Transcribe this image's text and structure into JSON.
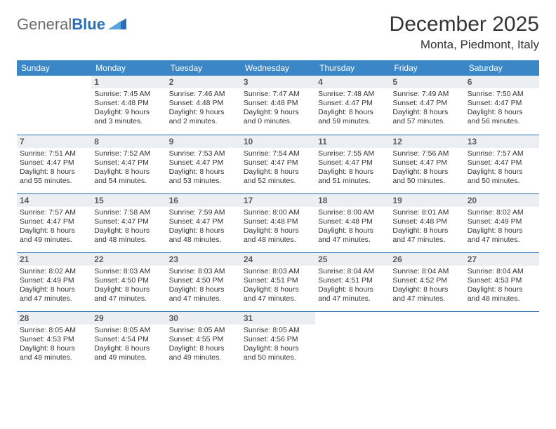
{
  "brand": {
    "part1": "General",
    "part2": "Blue"
  },
  "title": "December 2025",
  "location": "Monta, Piedmont, Italy",
  "colors": {
    "header_bg": "#3b86c7",
    "header_text": "#ffffff",
    "rule": "#2a6fb5",
    "daynum_bg": "#eceff1",
    "daynum_text": "#5a5a5a",
    "body_text": "#333333",
    "page_bg": "#ffffff"
  },
  "typography": {
    "title_fontsize": 30,
    "location_fontsize": 17,
    "weekday_fontsize": 12,
    "daynum_fontsize": 12,
    "cell_fontsize": 10.5
  },
  "weekdays": [
    "Sunday",
    "Monday",
    "Tuesday",
    "Wednesday",
    "Thursday",
    "Friday",
    "Saturday"
  ],
  "type": "table",
  "columns": 7,
  "rows_count": 5,
  "cells": [
    [
      null,
      {
        "day": "1",
        "sunrise": "7:45 AM",
        "sunset": "4:48 PM",
        "daylight": "9 hours and 3 minutes."
      },
      {
        "day": "2",
        "sunrise": "7:46 AM",
        "sunset": "4:48 PM",
        "daylight": "9 hours and 2 minutes."
      },
      {
        "day": "3",
        "sunrise": "7:47 AM",
        "sunset": "4:48 PM",
        "daylight": "9 hours and 0 minutes."
      },
      {
        "day": "4",
        "sunrise": "7:48 AM",
        "sunset": "4:47 PM",
        "daylight": "8 hours and 59 minutes."
      },
      {
        "day": "5",
        "sunrise": "7:49 AM",
        "sunset": "4:47 PM",
        "daylight": "8 hours and 57 minutes."
      },
      {
        "day": "6",
        "sunrise": "7:50 AM",
        "sunset": "4:47 PM",
        "daylight": "8 hours and 56 minutes."
      }
    ],
    [
      {
        "day": "7",
        "sunrise": "7:51 AM",
        "sunset": "4:47 PM",
        "daylight": "8 hours and 55 minutes."
      },
      {
        "day": "8",
        "sunrise": "7:52 AM",
        "sunset": "4:47 PM",
        "daylight": "8 hours and 54 minutes."
      },
      {
        "day": "9",
        "sunrise": "7:53 AM",
        "sunset": "4:47 PM",
        "daylight": "8 hours and 53 minutes."
      },
      {
        "day": "10",
        "sunrise": "7:54 AM",
        "sunset": "4:47 PM",
        "daylight": "8 hours and 52 minutes."
      },
      {
        "day": "11",
        "sunrise": "7:55 AM",
        "sunset": "4:47 PM",
        "daylight": "8 hours and 51 minutes."
      },
      {
        "day": "12",
        "sunrise": "7:56 AM",
        "sunset": "4:47 PM",
        "daylight": "8 hours and 50 minutes."
      },
      {
        "day": "13",
        "sunrise": "7:57 AM",
        "sunset": "4:47 PM",
        "daylight": "8 hours and 50 minutes."
      }
    ],
    [
      {
        "day": "14",
        "sunrise": "7:57 AM",
        "sunset": "4:47 PM",
        "daylight": "8 hours and 49 minutes."
      },
      {
        "day": "15",
        "sunrise": "7:58 AM",
        "sunset": "4:47 PM",
        "daylight": "8 hours and 48 minutes."
      },
      {
        "day": "16",
        "sunrise": "7:59 AM",
        "sunset": "4:47 PM",
        "daylight": "8 hours and 48 minutes."
      },
      {
        "day": "17",
        "sunrise": "8:00 AM",
        "sunset": "4:48 PM",
        "daylight": "8 hours and 48 minutes."
      },
      {
        "day": "18",
        "sunrise": "8:00 AM",
        "sunset": "4:48 PM",
        "daylight": "8 hours and 47 minutes."
      },
      {
        "day": "19",
        "sunrise": "8:01 AM",
        "sunset": "4:48 PM",
        "daylight": "8 hours and 47 minutes."
      },
      {
        "day": "20",
        "sunrise": "8:02 AM",
        "sunset": "4:49 PM",
        "daylight": "8 hours and 47 minutes."
      }
    ],
    [
      {
        "day": "21",
        "sunrise": "8:02 AM",
        "sunset": "4:49 PM",
        "daylight": "8 hours and 47 minutes."
      },
      {
        "day": "22",
        "sunrise": "8:03 AM",
        "sunset": "4:50 PM",
        "daylight": "8 hours and 47 minutes."
      },
      {
        "day": "23",
        "sunrise": "8:03 AM",
        "sunset": "4:50 PM",
        "daylight": "8 hours and 47 minutes."
      },
      {
        "day": "24",
        "sunrise": "8:03 AM",
        "sunset": "4:51 PM",
        "daylight": "8 hours and 47 minutes."
      },
      {
        "day": "25",
        "sunrise": "8:04 AM",
        "sunset": "4:51 PM",
        "daylight": "8 hours and 47 minutes."
      },
      {
        "day": "26",
        "sunrise": "8:04 AM",
        "sunset": "4:52 PM",
        "daylight": "8 hours and 47 minutes."
      },
      {
        "day": "27",
        "sunrise": "8:04 AM",
        "sunset": "4:53 PM",
        "daylight": "8 hours and 48 minutes."
      }
    ],
    [
      {
        "day": "28",
        "sunrise": "8:05 AM",
        "sunset": "4:53 PM",
        "daylight": "8 hours and 48 minutes."
      },
      {
        "day": "29",
        "sunrise": "8:05 AM",
        "sunset": "4:54 PM",
        "daylight": "8 hours and 49 minutes."
      },
      {
        "day": "30",
        "sunrise": "8:05 AM",
        "sunset": "4:55 PM",
        "daylight": "8 hours and 49 minutes."
      },
      {
        "day": "31",
        "sunrise": "8:05 AM",
        "sunset": "4:56 PM",
        "daylight": "8 hours and 50 minutes."
      },
      null,
      null,
      null
    ]
  ],
  "labels": {
    "sunrise": "Sunrise:",
    "sunset": "Sunset:",
    "daylight": "Daylight:"
  }
}
